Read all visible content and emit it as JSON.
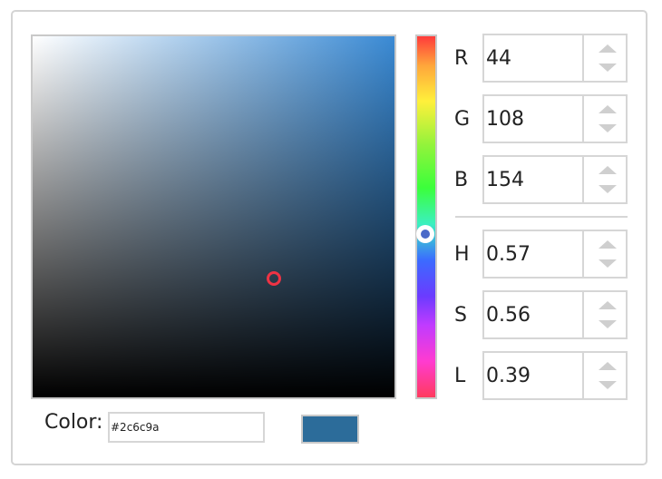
{
  "picker": {
    "hex_value": "#2c6c9a",
    "color_label": "Color:",
    "swatch_color": "#2c6c9a",
    "hue_fraction": 0.57,
    "channels": [
      {
        "label": "R",
        "value": "44"
      },
      {
        "label": "G",
        "value": "108"
      },
      {
        "label": "B",
        "value": "154"
      },
      {
        "label": "H",
        "value": "0.57"
      },
      {
        "label": "S",
        "value": "0.56"
      },
      {
        "label": "L",
        "value": "0.39"
      }
    ]
  },
  "icons": {
    "spinner_up": "chevron-up-icon",
    "spinner_down": "chevron-down-icon"
  }
}
